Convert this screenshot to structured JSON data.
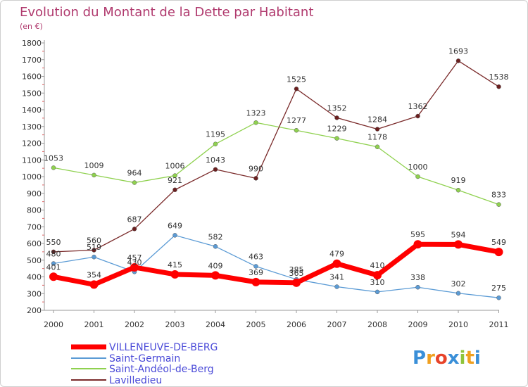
{
  "chart_data": {
    "type": "line",
    "title": "Evolution du Montant de la Dette par Habitant",
    "subtitle": "(en €)",
    "xlabel": "",
    "ylabel": "",
    "ylim": [
      200,
      1800
    ],
    "yticks": [
      200,
      300,
      400,
      500,
      600,
      700,
      800,
      900,
      1000,
      1100,
      1200,
      1300,
      1400,
      1500,
      1600,
      1700,
      1800
    ],
    "categories": [
      "2000",
      "2001",
      "2002",
      "2003",
      "2004",
      "2005",
      "2006",
      "2007",
      "2008",
      "2009",
      "2010",
      "2011"
    ],
    "grid": false,
    "legend_position": "bottom-left",
    "series": [
      {
        "name": "VILLENEUVE-DE-BERG",
        "color": "#ff0000",
        "values": [
          401,
          354,
          457,
          415,
          409,
          369,
          365,
          479,
          410,
          595,
          594,
          549
        ]
      },
      {
        "name": "Saint-Germain",
        "color": "#5b9bd5",
        "values": [
          480,
          519,
          430,
          649,
          582,
          463,
          385,
          341,
          310,
          338,
          302,
          275
        ]
      },
      {
        "name": "Saint-Andéol-de-Berg",
        "color": "#8fd14f",
        "values": [
          1053,
          1009,
          964,
          1006,
          1195,
          1323,
          1277,
          1229,
          1178,
          1000,
          919,
          833
        ]
      },
      {
        "name": "Lavilledieu",
        "color": "#7a2a2a",
        "values": [
          550,
          560,
          687,
          921,
          1043,
          990,
          1525,
          1352,
          1284,
          1362,
          1693,
          1538
        ]
      }
    ]
  },
  "logo": {
    "letters": [
      "P",
      "r",
      "o",
      "x",
      "i",
      "t",
      "i"
    ],
    "colors": [
      "#3a8fd8",
      "#f0a020",
      "#e8442a",
      "#3a8fd8",
      "#8fc43a",
      "#f0a020",
      "#3a8fd8"
    ]
  }
}
